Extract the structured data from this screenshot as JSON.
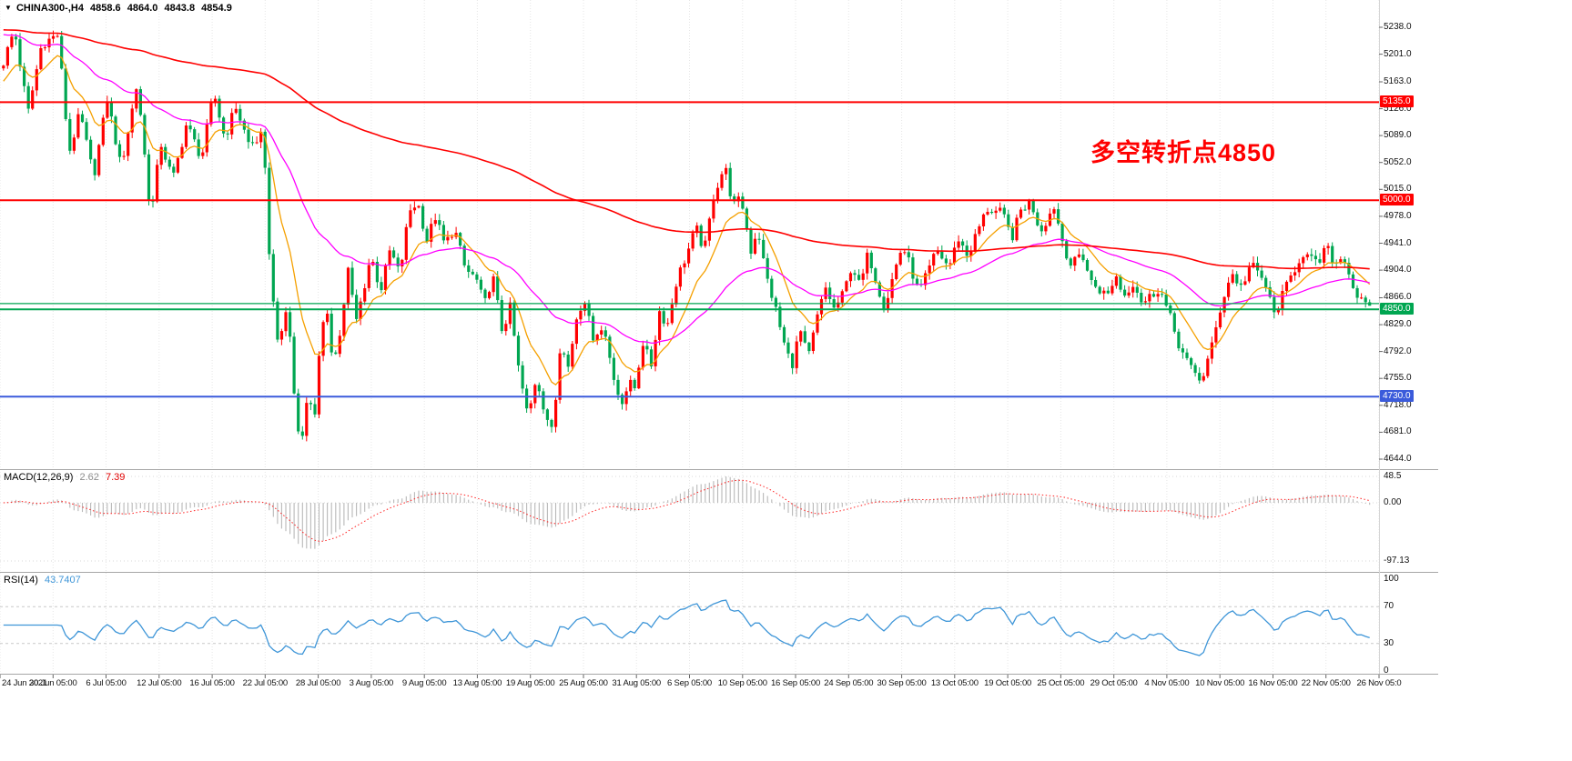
{
  "window": {
    "bg": "#ffffff"
  },
  "header": {
    "arrow": "▼",
    "symbol_period": "CHINA300-,H4",
    "open": "4858.6",
    "high": "4864.0",
    "low": "4843.8",
    "close": "4854.9"
  },
  "annotation": {
    "text": "多空转折点4850",
    "color": "#ff0000"
  },
  "macd_panel": {
    "label": "MACD(12,26,9)",
    "value_main": "2.62",
    "value_signal": "7.39",
    "scale_labels": [
      "48.5",
      "0.00",
      "-97.13"
    ]
  },
  "rsi_panel": {
    "label": "RSI(14)",
    "value": "43.7407",
    "scale_labels": [
      "100",
      "70",
      "30",
      "0"
    ]
  },
  "price_axis": {
    "ticks": [
      "5238.0",
      "5201.0",
      "5163.0",
      "5126.0",
      "5089.0",
      "5052.0",
      "5015.0",
      "4978.0",
      "4941.0",
      "4904.0",
      "4866.0",
      "4829.0",
      "4792.0",
      "4755.0",
      "4718.0",
      "4681.0",
      "4644.0"
    ]
  },
  "time_axis": {
    "labels": [
      "24 Jun 2021",
      "30 Jun 05:00",
      "6 Jul 05:00",
      "12 Jul 05:00",
      "16 Jul 05:00",
      "22 Jul 05:00",
      "28 Jul 05:00",
      "3 Aug 05:00",
      "9 Aug 05:00",
      "13 Aug 05:00",
      "19 Aug 05:00",
      "25 Aug 05:00",
      "31 Aug 05:00",
      "6 Sep 05:00",
      "10 Sep 05:00",
      "16 Sep 05:00",
      "24 Sep 05:00",
      "30 Sep 05:00",
      "13 Oct 05:00",
      "19 Oct 05:00",
      "25 Oct 05:00",
      "29 Oct 05:00",
      "4 Nov 05:00",
      "10 Nov 05:00",
      "16 Nov 05:00",
      "22 Nov 05:00",
      "26 Nov 05:0"
    ]
  },
  "colors": {
    "bull": "#ff0000",
    "bear": "#00a651",
    "macd_hist": "#b8b8b8",
    "macd_signal": "#ff2222",
    "rsi_line": "#3f96d8",
    "grid": "#e6e6e6",
    "separator": "#a6a6a6",
    "axis_text": "#111111"
  },
  "chart_data": {
    "type": "candlestick",
    "symbol": "CHINA300-",
    "timeframe": "H4",
    "candle_convention": "red = up, green = down",
    "last_bar_ohlc": {
      "open": 4858.6,
      "high": 4864.0,
      "low": 4843.8,
      "close": 4854.9
    },
    "price_axis_range": [
      4644.0,
      5238.0
    ],
    "time_range": [
      "24 Jun 2021",
      "26 Nov 2021 05:00"
    ],
    "horizontal_levels": [
      {
        "price": 5135.0,
        "color": "#ff0000",
        "width": 2,
        "tag": "5135.0"
      },
      {
        "price": 5000.0,
        "color": "#ff0000",
        "width": 2,
        "tag": "5000.0"
      },
      {
        "price": 4858.0,
        "color": "#00a651",
        "width": 1.2,
        "tag": null
      },
      {
        "price": 4850.0,
        "color": "#00a651",
        "width": 2,
        "tag": "4850.0"
      },
      {
        "price": 4730.0,
        "color": "#3b5bdb",
        "width": 2,
        "tag": "4730.0"
      }
    ],
    "moving_averages": [
      {
        "name": "ma-slow",
        "color": "#ff0000",
        "period": 200,
        "seed": 5235,
        "width": 1.6
      },
      {
        "name": "ma-mid",
        "color": "#ff00ff",
        "period": 45,
        "seed": 5230,
        "width": 1.3
      },
      {
        "name": "ma-fast",
        "color": "#f5a000",
        "period": 12,
        "seed": 5160,
        "width": 1.3
      }
    ],
    "indicators": {
      "macd": {
        "params": [
          12,
          26,
          9
        ],
        "display_values": [
          2.62,
          7.39
        ],
        "scale": {
          "max": 48.5,
          "zero": 0.0,
          "min": -97.13
        }
      },
      "rsi": {
        "period": 14,
        "display_value": 43.7407,
        "levels": [
          70,
          30
        ],
        "scale": [
          0,
          100
        ]
      }
    },
    "price_path_keypoints": [
      [
        0.0,
        5190
      ],
      [
        0.008,
        5235
      ],
      [
        0.018,
        5120
      ],
      [
        0.028,
        5215
      ],
      [
        0.04,
        5228
      ],
      [
        0.048,
        5065
      ],
      [
        0.056,
        5120
      ],
      [
        0.066,
        5032
      ],
      [
        0.076,
        5140
      ],
      [
        0.086,
        5045
      ],
      [
        0.098,
        5162
      ],
      [
        0.108,
        4975
      ],
      [
        0.115,
        5080
      ],
      [
        0.124,
        5028
      ],
      [
        0.134,
        5105
      ],
      [
        0.145,
        5058
      ],
      [
        0.154,
        5148
      ],
      [
        0.162,
        5085
      ],
      [
        0.17,
        5130
      ],
      [
        0.18,
        5075
      ],
      [
        0.19,
        5090
      ],
      [
        0.196,
        4880
      ],
      [
        0.202,
        4795
      ],
      [
        0.208,
        4860
      ],
      [
        0.214,
        4700
      ],
      [
        0.218,
        4662
      ],
      [
        0.223,
        4748
      ],
      [
        0.227,
        4682
      ],
      [
        0.231,
        4790
      ],
      [
        0.236,
        4852
      ],
      [
        0.241,
        4782
      ],
      [
        0.247,
        4818
      ],
      [
        0.252,
        4908
      ],
      [
        0.258,
        4832
      ],
      [
        0.263,
        4872
      ],
      [
        0.269,
        4925
      ],
      [
        0.276,
        4875
      ],
      [
        0.283,
        4932
      ],
      [
        0.29,
        4898
      ],
      [
        0.297,
        4985
      ],
      [
        0.303,
        4998
      ],
      [
        0.31,
        4945
      ],
      [
        0.316,
        4978
      ],
      [
        0.323,
        4938
      ],
      [
        0.33,
        4962
      ],
      [
        0.338,
        4905
      ],
      [
        0.346,
        4892
      ],
      [
        0.352,
        4855
      ],
      [
        0.358,
        4898
      ],
      [
        0.365,
        4820
      ],
      [
        0.371,
        4853
      ],
      [
        0.377,
        4768
      ],
      [
        0.384,
        4700
      ],
      [
        0.39,
        4758
      ],
      [
        0.396,
        4712
      ],
      [
        0.402,
        4678
      ],
      [
        0.408,
        4808
      ],
      [
        0.414,
        4775
      ],
      [
        0.42,
        4842
      ],
      [
        0.427,
        4865
      ],
      [
        0.433,
        4798
      ],
      [
        0.439,
        4836
      ],
      [
        0.446,
        4758
      ],
      [
        0.452,
        4722
      ],
      [
        0.458,
        4748
      ],
      [
        0.462,
        4742
      ],
      [
        0.468,
        4805
      ],
      [
        0.474,
        4772
      ],
      [
        0.48,
        4848
      ],
      [
        0.486,
        4828
      ],
      [
        0.493,
        4892
      ],
      [
        0.5,
        4925
      ],
      [
        0.507,
        4962
      ],
      [
        0.513,
        4930
      ],
      [
        0.52,
        5008
      ],
      [
        0.528,
        5048
      ],
      [
        0.534,
        4992
      ],
      [
        0.54,
        5002
      ],
      [
        0.547,
        4930
      ],
      [
        0.552,
        4962
      ],
      [
        0.558,
        4898
      ],
      [
        0.565,
        4852
      ],
      [
        0.571,
        4805
      ],
      [
        0.577,
        4772
      ],
      [
        0.583,
        4822
      ],
      [
        0.589,
        4782
      ],
      [
        0.596,
        4842
      ],
      [
        0.602,
        4880
      ],
      [
        0.608,
        4850
      ],
      [
        0.615,
        4872
      ],
      [
        0.621,
        4912
      ],
      [
        0.627,
        4880
      ],
      [
        0.633,
        4928
      ],
      [
        0.639,
        4888
      ],
      [
        0.645,
        4852
      ],
      [
        0.652,
        4902
      ],
      [
        0.658,
        4938
      ],
      [
        0.664,
        4908
      ],
      [
        0.67,
        4872
      ],
      [
        0.677,
        4902
      ],
      [
        0.683,
        4932
      ],
      [
        0.692,
        4908
      ],
      [
        0.699,
        4948
      ],
      [
        0.706,
        4922
      ],
      [
        0.713,
        4958
      ],
      [
        0.72,
        4988
      ],
      [
        0.731,
        4982
      ],
      [
        0.738,
        4948
      ],
      [
        0.745,
        4988
      ],
      [
        0.752,
        4998
      ],
      [
        0.759,
        4958
      ],
      [
        0.769,
        4992
      ],
      [
        0.776,
        4938
      ],
      [
        0.782,
        4908
      ],
      [
        0.789,
        4930
      ],
      [
        0.796,
        4888
      ],
      [
        0.808,
        4868
      ],
      [
        0.814,
        4898
      ],
      [
        0.82,
        4868
      ],
      [
        0.827,
        4888
      ],
      [
        0.834,
        4858
      ],
      [
        0.846,
        4880
      ],
      [
        0.854,
        4838
      ],
      [
        0.861,
        4798
      ],
      [
        0.869,
        4768
      ],
      [
        0.877,
        4752
      ],
      [
        0.885,
        4802
      ],
      [
        0.892,
        4862
      ],
      [
        0.899,
        4900
      ],
      [
        0.906,
        4880
      ],
      [
        0.913,
        4912
      ],
      [
        0.923,
        4888
      ],
      [
        0.93,
        4843
      ],
      [
        0.937,
        4872
      ],
      [
        0.944,
        4902
      ],
      [
        0.951,
        4928
      ],
      [
        0.962,
        4910
      ],
      [
        0.968,
        4936
      ],
      [
        0.975,
        4912
      ],
      [
        0.981,
        4925
      ],
      [
        0.988,
        4880
      ],
      [
        0.995,
        4856
      ],
      [
        1.0,
        4855
      ]
    ]
  }
}
